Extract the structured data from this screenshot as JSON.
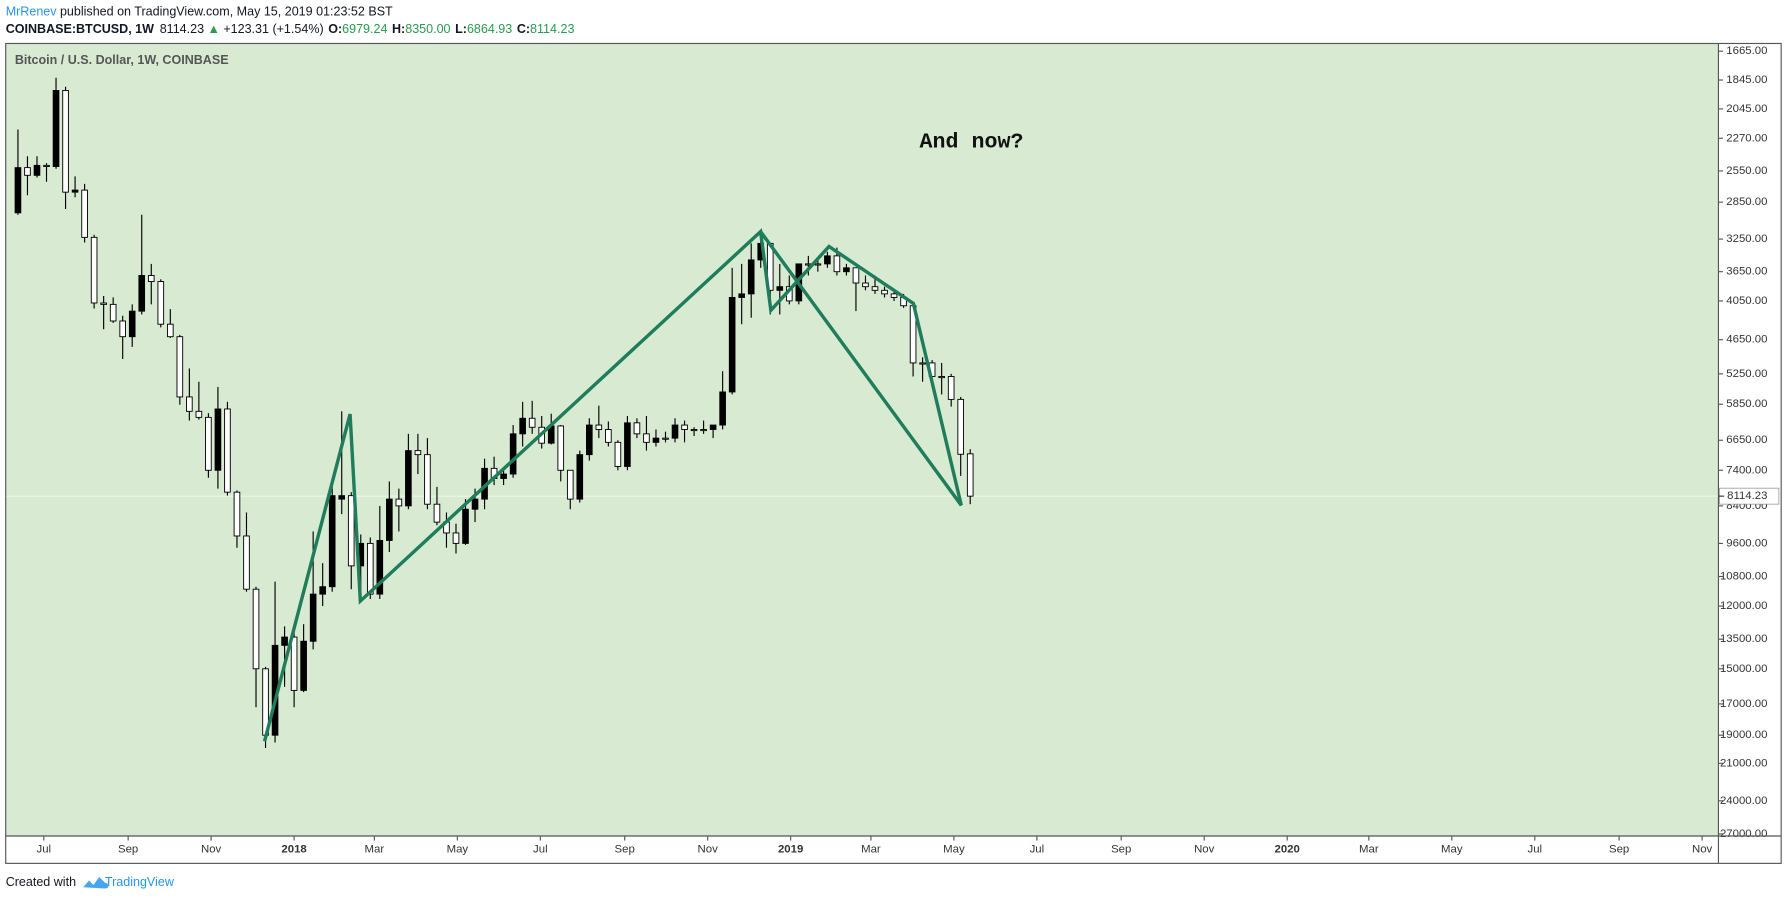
{
  "header": {
    "author": "MrRenev",
    "published": "published on TradingView.com, May 15, 2019 01:23:52 BST",
    "symbol": "COINBASE:BTCUSD, 1W",
    "last": "8114.23",
    "change_arrow": "▲",
    "change": "+123.31 (+1.54%)",
    "ohlc": [
      {
        "label": "O:",
        "value": "6979.24"
      },
      {
        "label": "H:",
        "value": "8350.00"
      },
      {
        "label": "L:",
        "value": "6864.93"
      },
      {
        "label": "C:",
        "value": "8114.23"
      }
    ]
  },
  "chart_data": {
    "type": "candlestick",
    "title": "Bitcoin / U.S. Dollar, 1W, COINBASE",
    "annotation": "And now?",
    "x": [
      "2017-06-12",
      "2017-06-19",
      "2017-06-26",
      "2017-07-03",
      "2017-07-10",
      "2017-07-17",
      "2017-07-24",
      "2017-07-31",
      "2017-08-07",
      "2017-08-14",
      "2017-08-21",
      "2017-08-28",
      "2017-09-04",
      "2017-09-11",
      "2017-09-18",
      "2017-09-25",
      "2017-10-02",
      "2017-10-09",
      "2017-10-16",
      "2017-10-23",
      "2017-10-30",
      "2017-11-06",
      "2017-11-13",
      "2017-11-20",
      "2017-11-27",
      "2017-12-04",
      "2017-12-11",
      "2017-12-18",
      "2017-12-25",
      "2018-01-01",
      "2018-01-08",
      "2018-01-15",
      "2018-01-22",
      "2018-01-29",
      "2018-02-05",
      "2018-02-12",
      "2018-02-19",
      "2018-02-26",
      "2018-03-05",
      "2018-03-12",
      "2018-03-19",
      "2018-03-26",
      "2018-04-02",
      "2018-04-09",
      "2018-04-16",
      "2018-04-23",
      "2018-04-30",
      "2018-05-07",
      "2018-05-14",
      "2018-05-21",
      "2018-05-28",
      "2018-06-04",
      "2018-06-11",
      "2018-06-18",
      "2018-06-25",
      "2018-07-02",
      "2018-07-09",
      "2018-07-16",
      "2018-07-23",
      "2018-07-30",
      "2018-08-06",
      "2018-08-13",
      "2018-08-20",
      "2018-08-27",
      "2018-09-03",
      "2018-09-10",
      "2018-09-17",
      "2018-09-24",
      "2018-10-01",
      "2018-10-08",
      "2018-10-15",
      "2018-10-22",
      "2018-10-29",
      "2018-11-05",
      "2018-11-12",
      "2018-11-19",
      "2018-11-26",
      "2018-12-03",
      "2018-12-10",
      "2018-12-17",
      "2018-12-24",
      "2018-12-31",
      "2019-01-07",
      "2019-01-14",
      "2019-01-21",
      "2019-01-28",
      "2019-02-04",
      "2019-02-11",
      "2019-02-18",
      "2019-02-25",
      "2019-03-04",
      "2019-03-11",
      "2019-03-18",
      "2019-03-25",
      "2019-04-01",
      "2019-04-08",
      "2019-04-15",
      "2019-04-22",
      "2019-04-29",
      "2019-05-06",
      "2019-05-13"
    ],
    "open": [
      2960,
      2520,
      2590,
      2500,
      2510,
      1915,
      2750,
      2730,
      3230,
      4080,
      4100,
      4350,
      4600,
      4200,
      3700,
      3780,
      4400,
      4600,
      5700,
      6000,
      6130,
      7400,
      5950,
      8000,
      9350,
      11300,
      15000,
      19000,
      13800,
      13400,
      16200,
      13600,
      11500,
      11200,
      8200,
      8100,
      10400,
      9600,
      11500,
      9500,
      8200,
      8400,
      6900,
      7000,
      8350,
      8900,
      9250,
      9600,
      8500,
      8200,
      7350,
      7620,
      7500,
      6500,
      6150,
      6350,
      6720,
      6320,
      7400,
      8200,
      7000,
      6300,
      6400,
      6700,
      7300,
      6250,
      6500,
      6700,
      6600,
      6600,
      6300,
      6400,
      6400,
      6400,
      6300,
      5600,
      4000,
      3950,
      3500,
      3300,
      3900,
      3850,
      4050,
      3550,
      3550,
      3550,
      3450,
      3650,
      3600,
      3800,
      3850,
      3900,
      3950,
      4000,
      4120,
      5050,
      5050,
      5300,
      5300,
      5750,
      6979.24
    ],
    "high": [
      2980,
      2780,
      2610,
      2650,
      2530,
      2920,
      2800,
      3290,
      4160,
      4480,
      4380,
      4980,
      4770,
      4250,
      4100,
      4450,
      4620,
      5860,
      6200,
      6180,
      7600,
      7900,
      8100,
      9750,
      11400,
      17200,
      19890,
      19500,
      16000,
      17200,
      16300,
      14000,
      12000,
      11400,
      8650,
      11300,
      11800,
      11700,
      11700,
      9900,
      9200,
      8500,
      7500,
      8500,
      9000,
      9750,
      9950,
      9650,
      8900,
      8500,
      7800,
      7800,
      7600,
      6800,
      6500,
      6850,
      6750,
      7700,
      8500,
      8300,
      7150,
      6600,
      6800,
      7400,
      7400,
      6600,
      6900,
      6800,
      6700,
      6700,
      6700,
      6550,
      6500,
      6600,
      6400,
      5650,
      4400,
      4300,
      3600,
      4250,
      4250,
      4100,
      4100,
      3700,
      3650,
      3600,
      3700,
      3700,
      4200,
      3900,
      3950,
      4000,
      4050,
      4150,
      5300,
      5400,
      5400,
      5650,
      5900,
      7550,
      8350
    ],
    "low": [
      2200,
      2420,
      2420,
      2480,
      1830,
      1890,
      2600,
      2670,
      3200,
      3980,
      4000,
      4270,
      4100,
      2980,
      3550,
      3750,
      4170,
      4570,
      5150,
      5400,
      6040,
      5500,
      5800,
      7950,
      8600,
      11200,
      14900,
      11000,
      12900,
      12800,
      12800,
      9200,
      10300,
      7700,
      6000,
      8000,
      9300,
      9400,
      8400,
      7700,
      7900,
      6500,
      6500,
      6600,
      7850,
      8600,
      8950,
      8200,
      7900,
      7100,
      7050,
      7400,
      6300,
      5800,
      5780,
      6100,
      6050,
      6300,
      7400,
      6900,
      6150,
      5880,
      6220,
      6650,
      6100,
      6150,
      6100,
      6400,
      6450,
      6150,
      6200,
      6350,
      6200,
      6300,
      5200,
      3600,
      3550,
      3300,
      3230,
      3300,
      3550,
      3700,
      3550,
      3450,
      3500,
      3400,
      3350,
      3550,
      3600,
      3700,
      3700,
      3850,
      3900,
      3950,
      4100,
      4950,
      5000,
      5050,
      5250,
      5700,
      6864.93
    ],
    "close": [
      2520,
      2590,
      2500,
      2510,
      1915,
      2750,
      2730,
      3230,
      4080,
      4100,
      4350,
      4600,
      4200,
      3700,
      3780,
      4400,
      4600,
      5700,
      6000,
      6130,
      7400,
      5950,
      8000,
      9350,
      11300,
      15000,
      19000,
      13800,
      13400,
      16200,
      13600,
      11500,
      11200,
      8100,
      8100,
      10400,
      9600,
      11500,
      9500,
      8200,
      8400,
      6900,
      7000,
      8350,
      8900,
      9250,
      9600,
      8500,
      8200,
      7350,
      7620,
      7500,
      6500,
      6150,
      6350,
      6720,
      6320,
      7400,
      8200,
      7000,
      6300,
      6400,
      6700,
      7300,
      6250,
      6500,
      6700,
      6600,
      6600,
      6300,
      6400,
      6400,
      6400,
      6300,
      5600,
      4000,
      3950,
      3500,
      3300,
      3900,
      3850,
      4050,
      3550,
      3550,
      3550,
      3450,
      3650,
      3600,
      3800,
      3850,
      3900,
      3950,
      4000,
      4120,
      5050,
      5050,
      5300,
      5300,
      5750,
      6990,
      8114.23
    ],
    "xlim": [
      "2017-06-03",
      "2020-11-13"
    ],
    "xticks": [
      {
        "value": "2017-07-01",
        "label": "Jul"
      },
      {
        "value": "2017-09-01",
        "label": "Sep"
      },
      {
        "value": "2017-11-01",
        "label": "Nov"
      },
      {
        "value": "2018-01-01",
        "label": "2018"
      },
      {
        "value": "2018-03-01",
        "label": "Mar"
      },
      {
        "value": "2018-05-01",
        "label": "May"
      },
      {
        "value": "2018-07-01",
        "label": "Jul"
      },
      {
        "value": "2018-09-01",
        "label": "Sep"
      },
      {
        "value": "2018-11-01",
        "label": "Nov"
      },
      {
        "value": "2019-01-01",
        "label": "2019"
      },
      {
        "value": "2019-03-01",
        "label": "Mar"
      },
      {
        "value": "2019-05-01",
        "label": "May"
      },
      {
        "value": "2019-07-01",
        "label": "Jul"
      },
      {
        "value": "2019-09-01",
        "label": "Sep"
      },
      {
        "value": "2019-11-01",
        "label": "Nov"
      },
      {
        "value": "2020-01-01",
        "label": "2020"
      },
      {
        "value": "2020-03-01",
        "label": "Mar"
      },
      {
        "value": "2020-05-01",
        "label": "May"
      },
      {
        "value": "2020-07-01",
        "label": "Jul"
      },
      {
        "value": "2020-09-01",
        "label": "Sep"
      },
      {
        "value": "2020-11-01",
        "label": "Nov"
      }
    ],
    "ylim": [
      1620,
      27200
    ],
    "yticks": [
      {
        "value": 1665,
        "label": "1665.00"
      },
      {
        "value": 1845,
        "label": "1845.00"
      },
      {
        "value": 2045,
        "label": "2045.00"
      },
      {
        "value": 2270,
        "label": "2270.00"
      },
      {
        "value": 2550,
        "label": "2550.00"
      },
      {
        "value": 2850,
        "label": "2850.00"
      },
      {
        "value": 3250,
        "label": "3250.00"
      },
      {
        "value": 3650,
        "label": "3650.00"
      },
      {
        "value": 4050,
        "label": "4050.00"
      },
      {
        "value": 4650,
        "label": "4650.00"
      },
      {
        "value": 5250,
        "label": "5250.00"
      },
      {
        "value": 5850,
        "label": "5850.00"
      },
      {
        "value": 6650,
        "label": "6650.00"
      },
      {
        "value": 7400,
        "label": "7400.00"
      },
      {
        "value": 8400,
        "label": "8400.00"
      },
      {
        "value": 9600,
        "label": "9600.00"
      },
      {
        "value": 10800,
        "label": "10800.00"
      },
      {
        "value": 12000,
        "label": "12000.00"
      },
      {
        "value": 13500,
        "label": "13500.00"
      },
      {
        "value": 15000,
        "label": "15000.00"
      },
      {
        "value": 17000,
        "label": "17000.00"
      },
      {
        "value": 19000,
        "label": "19000.00"
      },
      {
        "value": 21000,
        "label": "21000.00"
      },
      {
        "value": 24000,
        "label": "24000.00"
      },
      {
        "value": 27000,
        "label": "27000.00"
      }
    ],
    "log_scale": true,
    "y_inverted": true,
    "up_color": "#ffffff",
    "down_color": "#000000",
    "background": "#d9ead3"
  },
  "footer": {
    "created": "Created with",
    "brand": "TradingView"
  }
}
